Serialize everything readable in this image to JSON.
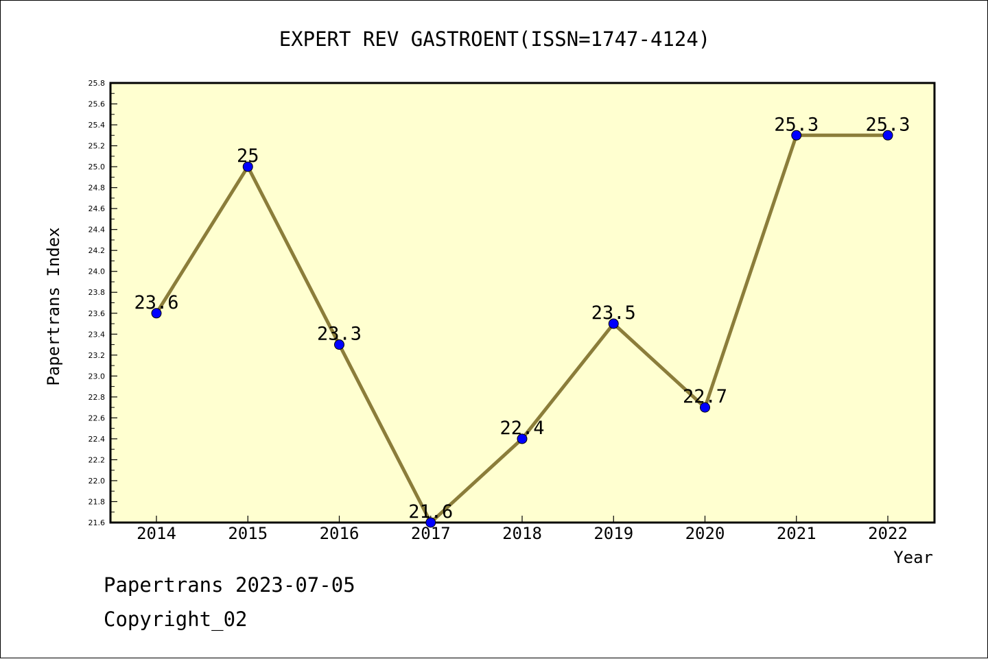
{
  "chart_data": {
    "type": "line",
    "title": "EXPERT REV GASTROENT(ISSN=1747-4124)",
    "xlabel": "Year",
    "ylabel": "Papertrans Index",
    "categories": [
      "2014",
      "2015",
      "2016",
      "2017",
      "2018",
      "2019",
      "2020",
      "2021",
      "2022"
    ],
    "values": [
      23.6,
      25,
      23.3,
      21.6,
      22.4,
      23.5,
      22.7,
      25.3,
      25.3
    ],
    "data_labels": [
      "23.6",
      "25",
      "23.3",
      "21.6",
      "22.4",
      "23.5",
      "22.7",
      "25.3",
      "25.3"
    ],
    "ylim": [
      21.6,
      25.8
    ],
    "yticks": [
      "21.6",
      "21.8",
      "22.0",
      "22.2",
      "22.4",
      "22.6",
      "22.8",
      "23.0",
      "23.2",
      "23.4",
      "23.6",
      "23.8",
      "24.0",
      "24.2",
      "24.4",
      "24.6",
      "24.8",
      "25.0",
      "25.2",
      "25.4",
      "25.6",
      "25.8"
    ],
    "grid": false,
    "colors": {
      "line": "#8b7d3a",
      "marker": "#0000ff",
      "plot_background": "#ffffd0"
    }
  },
  "footer": {
    "date_line": "Papertrans 2023-07-05",
    "copyright": "Copyright_02"
  }
}
